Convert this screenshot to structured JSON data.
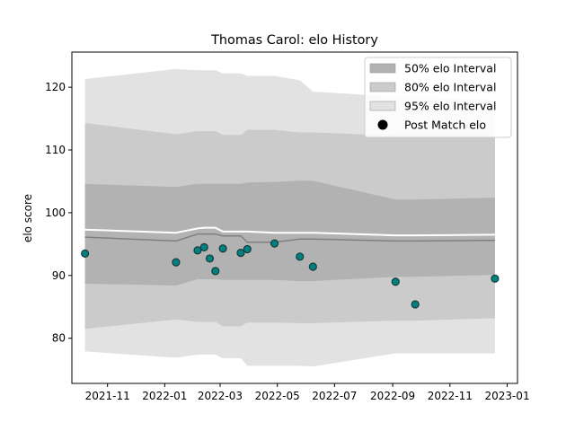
{
  "chart_data": {
    "type": "line",
    "title": "Thomas Carol: elo History",
    "xlabel": "",
    "ylabel": "elo score",
    "xlim": [
      "2021-09-24",
      "2023-01-12"
    ],
    "ylim": [
      72.8,
      125.6
    ],
    "x_ticks": [
      "2021-11",
      "2022-01",
      "2022-03",
      "2022-05",
      "2022-07",
      "2022-09",
      "2022-11",
      "2023-01"
    ],
    "y_ticks": [
      80,
      90,
      100,
      110,
      120
    ],
    "legend_position": "top-right",
    "legend": [
      {
        "label": "50% elo Interval",
        "kind": "band",
        "color": "#b2b2b2"
      },
      {
        "label": "80% elo Interval",
        "kind": "band",
        "color": "#cbcbcb"
      },
      {
        "label": "95% elo Interval",
        "kind": "band",
        "color": "#e2e2e2"
      },
      {
        "label": "Post Match elo",
        "kind": "marker",
        "color": "#000000"
      }
    ],
    "x": [
      "2021-10-08",
      "2022-01-13",
      "2022-02-05",
      "2022-02-12",
      "2022-02-18",
      "2022-02-24",
      "2022-03-04",
      "2022-03-23",
      "2022-03-30",
      "2022-04-28",
      "2022-05-25",
      "2022-06-08",
      "2022-09-04",
      "2022-09-25",
      "2022-12-19"
    ],
    "series": [
      {
        "name": "Post Match elo",
        "kind": "scatter",
        "color": "#008080",
        "edge_color": "#1a3a3a",
        "values": [
          93.5,
          92.1,
          94.0,
          94.5,
          92.7,
          90.7,
          94.3,
          93.6,
          94.2,
          95.1,
          93.0,
          91.4,
          89.0,
          85.4,
          89.5
        ]
      },
      {
        "name": "",
        "kind": "line",
        "color": "#ffffff",
        "values": [
          97.3,
          96.8,
          97.5,
          97.6,
          97.6,
          97.6,
          97.0,
          97.0,
          97.0,
          96.8,
          96.8,
          96.8,
          96.4,
          96.4,
          96.5
        ]
      },
      {
        "name": "",
        "kind": "line",
        "color": "#808080",
        "values": [
          96.1,
          95.5,
          96.6,
          96.6,
          96.6,
          96.6,
          96.3,
          96.3,
          95.3,
          95.3,
          95.8,
          95.8,
          95.5,
          95.5,
          95.6
        ]
      },
      {
        "name": "50% elo Interval",
        "kind": "band",
        "upper": [
          104.6,
          104.1,
          104.6,
          104.6,
          104.6,
          104.6,
          104.6,
          104.6,
          104.8,
          104.9,
          105.1,
          105.1,
          102.1,
          102.1,
          102.4
        ],
        "lower": [
          88.7,
          88.4,
          89.4,
          89.4,
          89.4,
          89.4,
          89.3,
          89.3,
          89.3,
          89.3,
          89.1,
          89.1,
          89.8,
          89.8,
          90.1
        ]
      },
      {
        "name": "80% elo Interval",
        "kind": "band",
        "upper": [
          114.3,
          112.5,
          113.0,
          113.0,
          113.0,
          113.0,
          112.4,
          112.4,
          113.2,
          113.2,
          112.8,
          112.8,
          112.3,
          112.3,
          112.3
        ],
        "lower": [
          81.5,
          83.0,
          82.6,
          82.6,
          82.6,
          82.6,
          81.9,
          81.9,
          82.5,
          82.5,
          82.4,
          82.4,
          82.8,
          82.8,
          83.2
        ]
      },
      {
        "name": "95% elo Interval",
        "kind": "band",
        "upper": [
          121.3,
          122.9,
          122.7,
          122.7,
          122.7,
          122.7,
          122.2,
          122.2,
          121.8,
          121.8,
          121.1,
          119.3,
          118.5,
          118.4,
          118.0
        ],
        "lower": [
          77.9,
          76.9,
          77.4,
          77.4,
          77.4,
          77.4,
          76.8,
          76.8,
          75.6,
          75.6,
          75.6,
          75.5,
          77.6,
          77.6,
          77.6
        ]
      }
    ]
  }
}
